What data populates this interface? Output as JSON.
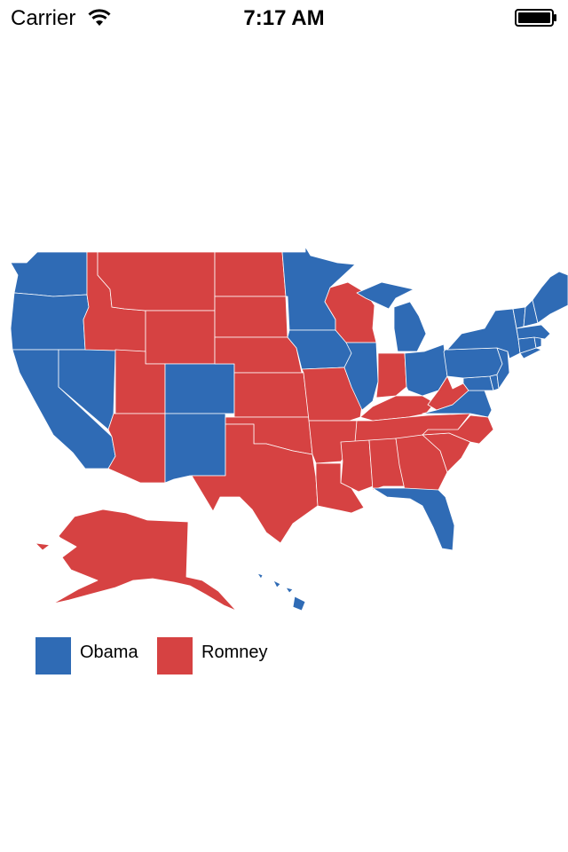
{
  "status_bar": {
    "carrier": "Carrier",
    "time": "7:17 AM",
    "icons": [
      "wifi-icon",
      "battery-icon"
    ]
  },
  "map": {
    "type": "choropleth",
    "region": "United States",
    "colors": {
      "Obama": "#2f6bb5",
      "Romney": "#d64242"
    },
    "states": {
      "Obama": [
        "WA",
        "OR",
        "CA",
        "NV",
        "CO",
        "NM",
        "MN",
        "IA",
        "WI-not",
        "IL",
        "MI",
        "OH",
        "PA",
        "NY",
        "VT",
        "NH",
        "ME",
        "MA",
        "RI",
        "CT",
        "NJ",
        "DE",
        "MD",
        "DC",
        "VA",
        "FL",
        "HI"
      ],
      "Romney": [
        "ID",
        "MT",
        "WY",
        "UT",
        "AZ",
        "ND",
        "SD",
        "NE",
        "KS",
        "OK",
        "TX",
        "MO",
        "AR",
        "LA",
        "MS",
        "AL",
        "GA",
        "SC",
        "NC",
        "TN",
        "KY",
        "IN",
        "WV",
        "AK",
        "WI"
      ]
    }
  },
  "legend": {
    "items": [
      {
        "label": "Obama",
        "color": "#2f6bb5"
      },
      {
        "label": "Romney",
        "color": "#d64242"
      }
    ]
  }
}
